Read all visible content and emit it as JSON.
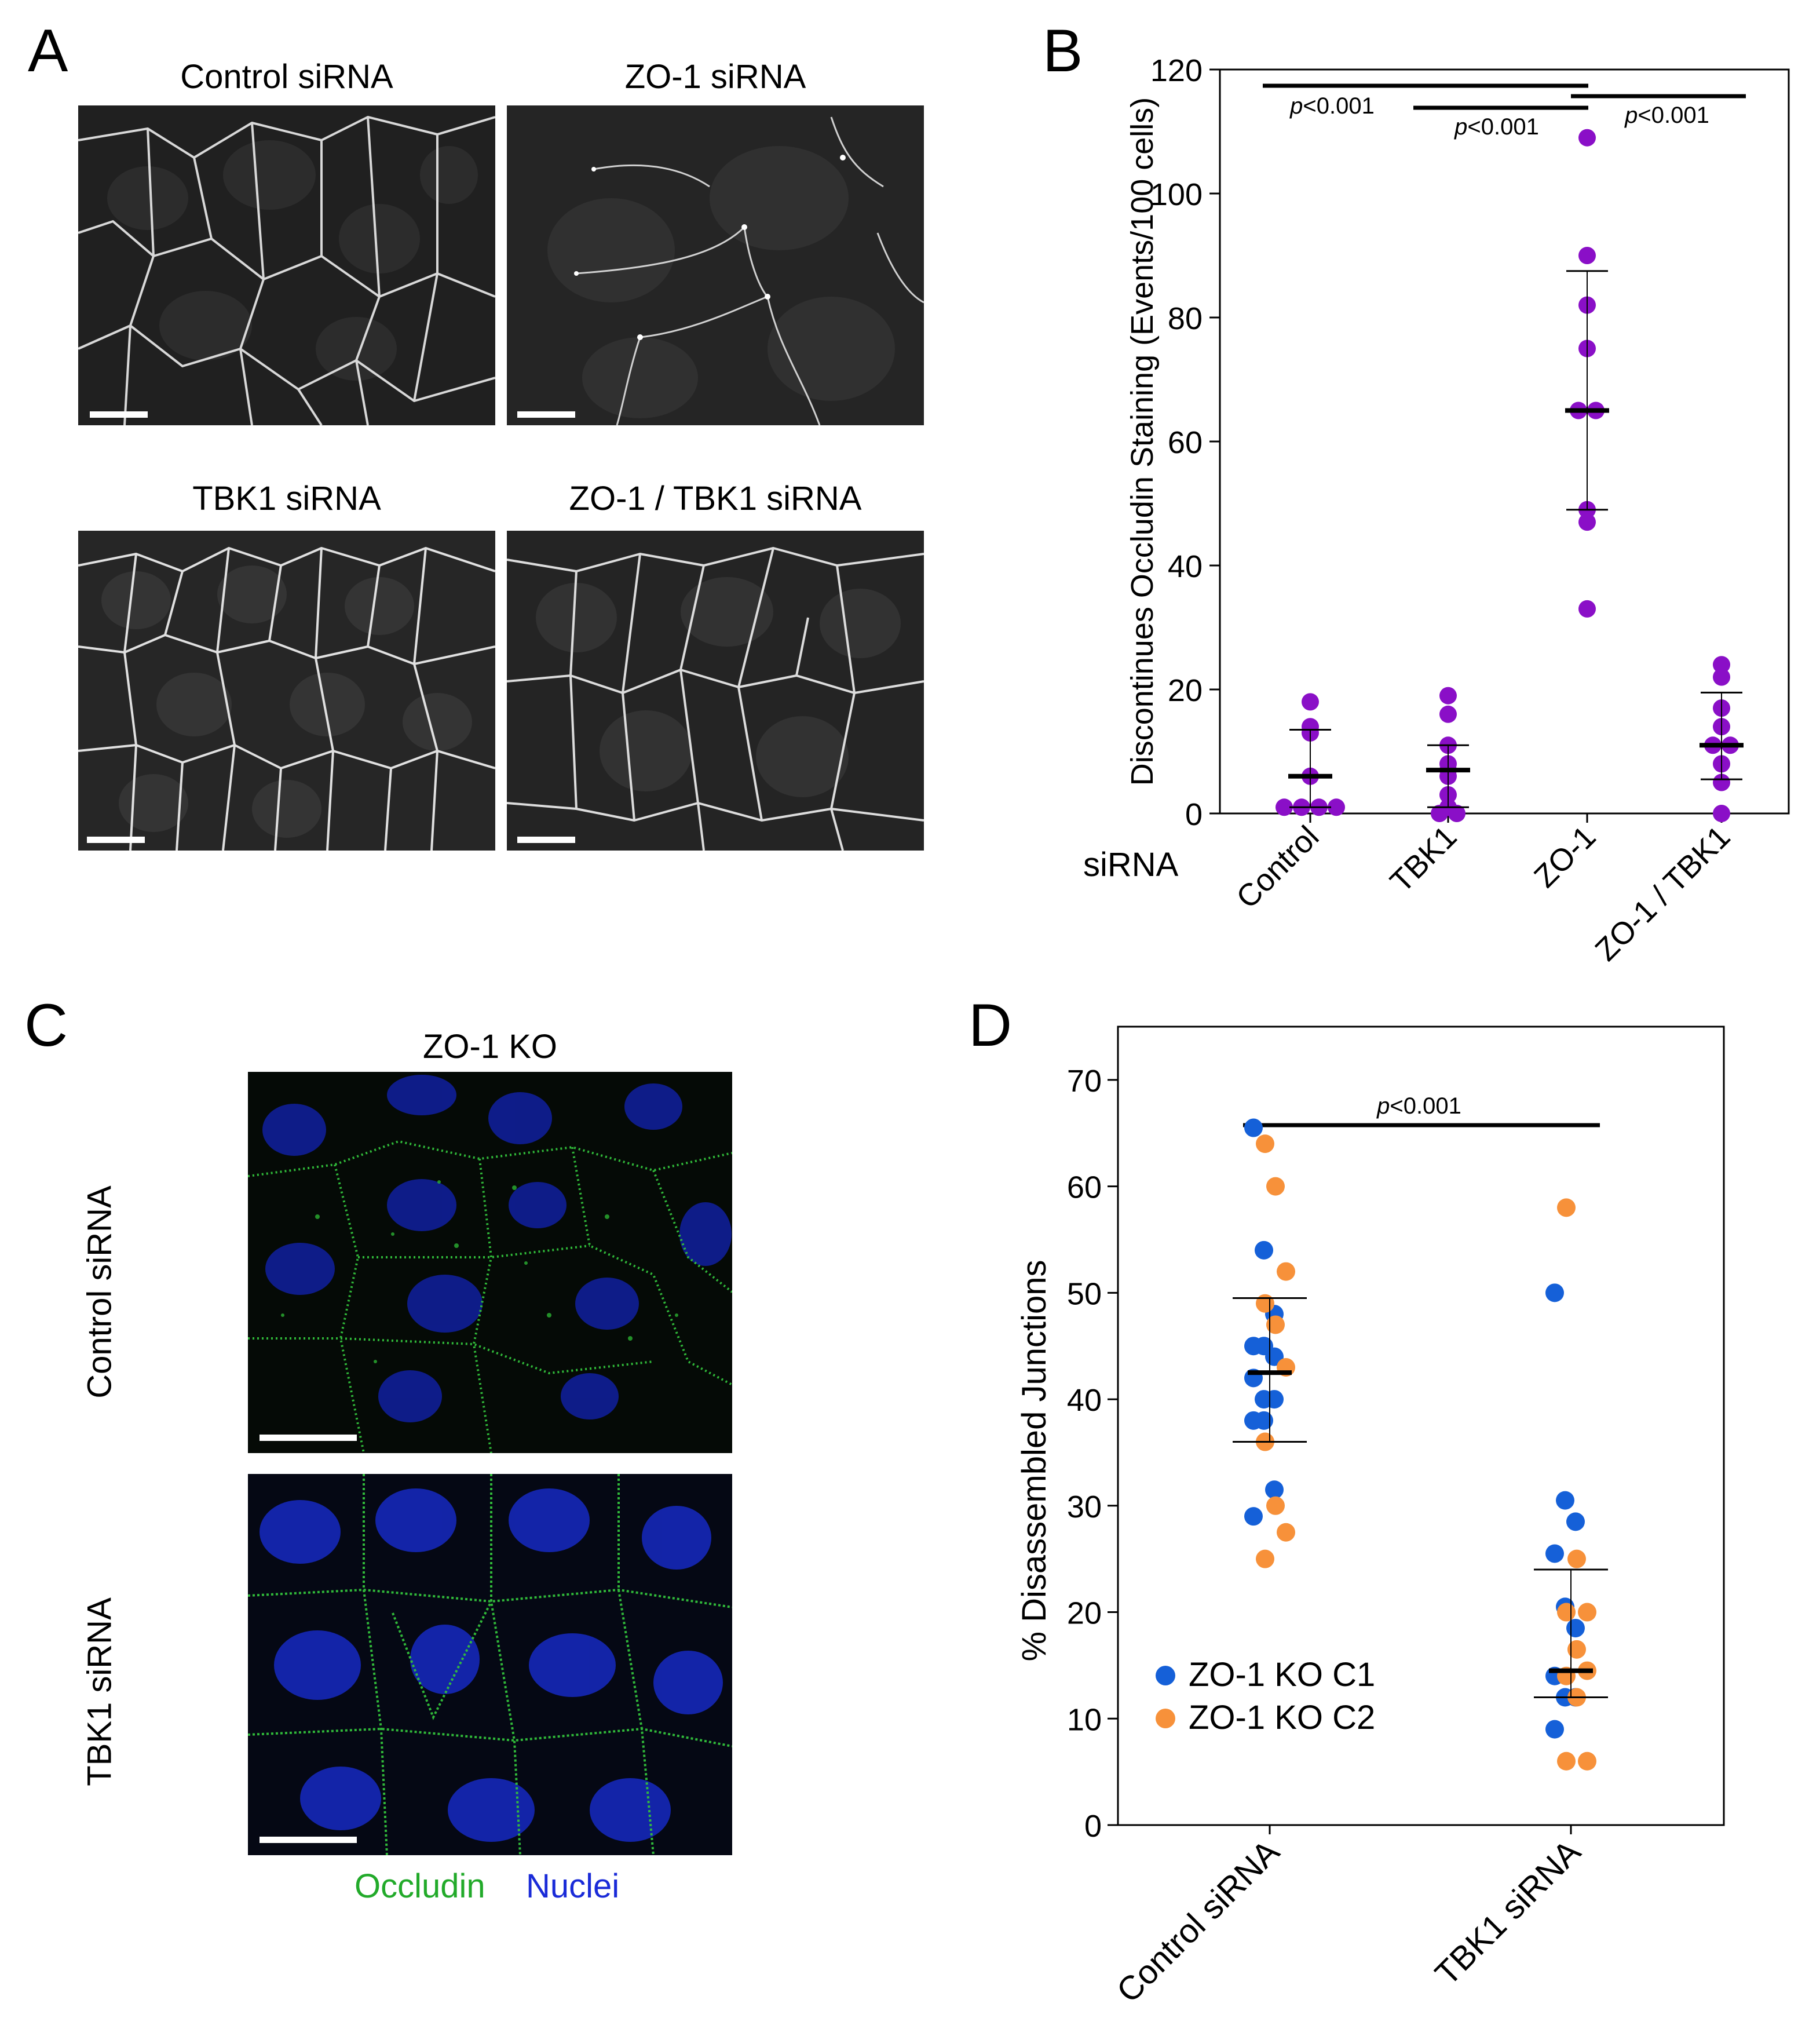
{
  "panels": {
    "A": {
      "letter": "A",
      "titles": [
        "Control siRNA",
        "ZO-1 siRNA",
        "TBK1 siRNA",
        "ZO-1 / TBK1 siRNA"
      ]
    },
    "B": {
      "letter": "B"
    },
    "C": {
      "letter": "C",
      "title": "ZO-1 KO",
      "row_labels": [
        "Control siRNA",
        "TBK1 siRNA"
      ],
      "stain_legend": [
        {
          "label": "Occludin",
          "color": "#22aa2a"
        },
        {
          "label": "Nuclei",
          "color": "#1a2bd8"
        }
      ]
    },
    "D": {
      "letter": "D"
    }
  },
  "chart_data": [
    {
      "id": "B",
      "type": "scatter",
      "ylabel": "Discontinues Occludin Staining (Events/100 cells)",
      "xlabel_prefix": "siRNA",
      "categories": [
        "Control",
        "TBK1",
        "ZO-1",
        "ZO-1 / TBK1"
      ],
      "ylim": [
        0,
        120
      ],
      "yticks": [
        0,
        20,
        40,
        60,
        80,
        100,
        120
      ],
      "point_color": "#8a0fc7",
      "series": [
        {
          "category": "Control",
          "values": [
            18,
            14,
            13,
            6,
            1,
            1,
            1,
            1
          ],
          "median": 6,
          "q1": 1,
          "q3": 13.5
        },
        {
          "category": "TBK1",
          "values": [
            19,
            16,
            11,
            8,
            7,
            6,
            3,
            1,
            0,
            0
          ],
          "median": 7,
          "q1": 1,
          "q3": 11
        },
        {
          "category": "ZO-1",
          "values": [
            109,
            90,
            82,
            75,
            65,
            65,
            49,
            47,
            33
          ],
          "median": 65,
          "q1": 49,
          "q3": 87.5
        },
        {
          "category": "ZO-1 / TBK1",
          "values": [
            24,
            22,
            17,
            14,
            11,
            11,
            8,
            5,
            0
          ],
          "median": 11,
          "q1": 5.5,
          "q3": 19.5
        }
      ],
      "significance": [
        {
          "from": "Control",
          "to": "ZO-1",
          "label": "p<0.001"
        },
        {
          "from": "TBK1",
          "to": "ZO-1",
          "label": "p<0.001"
        },
        {
          "from": "ZO-1",
          "to": "ZO-1 / TBK1",
          "label": "p<0.001"
        }
      ]
    },
    {
      "id": "D",
      "type": "scatter",
      "ylabel": "% Disassembled Junctions",
      "categories": [
        "Control siRNA",
        "TBK1 siRNA"
      ],
      "ylim": [
        0,
        75
      ],
      "yticks": [
        0,
        10,
        20,
        30,
        40,
        50,
        60,
        70
      ],
      "series": [
        {
          "name": "ZO-1 KO C1",
          "color": "#1560d8",
          "values_by_category": {
            "Control siRNA": [
              65.5,
              54,
              48,
              45,
              45,
              44,
              42,
              40,
              40,
              38,
              38,
              31.5,
              29
            ],
            "TBK1 siRNA": [
              50,
              30.5,
              28.5,
              25.5,
              20.5,
              18.5,
              14,
              12,
              12,
              9
            ]
          }
        },
        {
          "name": "ZO-1 KO C2",
          "color": "#f7913a",
          "values_by_category": {
            "Control siRNA": [
              64,
              60,
              52,
              49,
              47,
              43,
              36,
              30,
              27.5,
              25
            ],
            "TBK1 siRNA": [
              58,
              25,
              20,
              20,
              16.5,
              14.5,
              14,
              12,
              6,
              6
            ]
          }
        }
      ],
      "summary": [
        {
          "category": "Control siRNA",
          "median": 42.5,
          "q1": 36,
          "q3": 49.5
        },
        {
          "category": "TBK1 siRNA",
          "median": 14.5,
          "q1": 12,
          "q3": 24
        }
      ],
      "significance": [
        {
          "from": "Control siRNA",
          "to": "TBK1 siRNA",
          "label": "p<0.001"
        }
      ]
    }
  ]
}
